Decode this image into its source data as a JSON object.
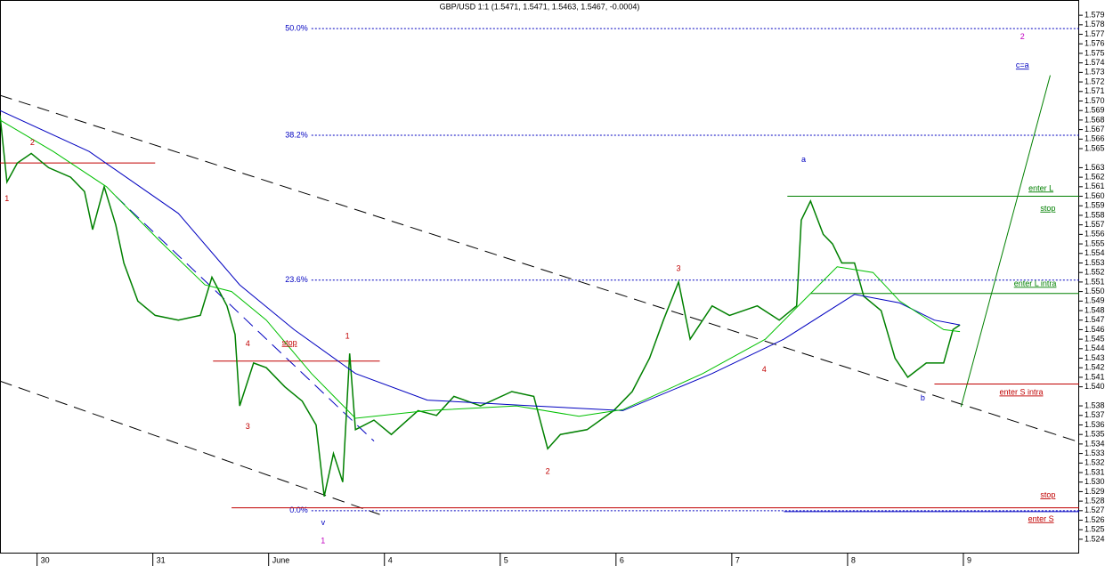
{
  "chart_data": {
    "type": "line",
    "title": "GBP/USD 1:1 (1.5471, 1.5471, 1.5463, 1.5467, -0.0004)",
    "xlim": [
      -0.32,
      9.0
    ],
    "ylim": [
      1.5225,
      1.5806
    ],
    "xticks": [
      {
        "value": 0,
        "label": "30"
      },
      {
        "value": 1,
        "label": "31"
      },
      {
        "value": 2,
        "label": "June"
      },
      {
        "value": 3,
        "label": "4"
      },
      {
        "value": 4,
        "label": "5"
      },
      {
        "value": 5,
        "label": "6"
      },
      {
        "value": 6,
        "label": "7"
      },
      {
        "value": 7,
        "label": "8"
      },
      {
        "value": 8,
        "label": "9"
      }
    ],
    "yticks": [
      1.579,
      1.578,
      1.577,
      1.576,
      1.575,
      1.574,
      1.573,
      1.572,
      1.571,
      {
        "value": 1.57,
        "label": "1.570"
      },
      1.569,
      1.568,
      1.567,
      1.566,
      1.565,
      1.563,
      1.562,
      1.561,
      {
        "value": 1.56,
        "label": "1.560"
      },
      1.559,
      1.558,
      1.557,
      1.556,
      1.555,
      1.554,
      1.553,
      1.552,
      1.551,
      {
        "value": 1.55,
        "label": "1.550"
      },
      1.549,
      1.548,
      1.547,
      1.546,
      1.545,
      1.544,
      1.543,
      1.542,
      1.541,
      {
        "value": 1.54,
        "label": "1.540"
      },
      1.538,
      1.537,
      1.536,
      1.535,
      1.534,
      1.533,
      1.532,
      1.531,
      {
        "value": 1.53,
        "label": "1.530"
      },
      1.529,
      1.528,
      1.527,
      1.526,
      1.525,
      1.524
    ],
    "series": [
      {
        "color": "#008000",
        "width": 1.5,
        "x": [
          -0.32,
          -0.26,
          -0.17,
          -0.05,
          0.1,
          0.29,
          0.41,
          0.48,
          0.58,
          0.68,
          0.75,
          0.87,
          1.02,
          1.22,
          1.41,
          1.51,
          1.64,
          1.71,
          1.75,
          1.87,
          1.98,
          2.14,
          2.29,
          2.41,
          2.48,
          2.56,
          2.64,
          2.7,
          2.75,
          2.91,
          3.06,
          3.29,
          3.45,
          3.6,
          3.83,
          4.1,
          4.29,
          4.41,
          4.52,
          4.75,
          4.98,
          5.14,
          5.29,
          5.41,
          5.54,
          5.64,
          5.83,
          5.98,
          6.22,
          6.41,
          6.56,
          6.6,
          6.68,
          6.79,
          6.87,
          6.95,
          7.06,
          7.14,
          7.29,
          7.41,
          7.52,
          7.68,
          7.83,
          7.91,
          7.97
        ],
        "values": [
          1.5685,
          1.5615,
          1.5635,
          1.5645,
          1.563,
          1.562,
          1.5605,
          1.5565,
          1.561,
          1.557,
          1.553,
          1.549,
          1.5475,
          1.547,
          1.5475,
          1.5515,
          1.5485,
          1.5455,
          1.538,
          1.5425,
          1.542,
          1.54,
          1.5385,
          1.536,
          1.5285,
          1.533,
          1.53,
          1.5435,
          1.5355,
          1.5365,
          1.535,
          1.5375,
          1.537,
          1.539,
          1.538,
          1.5395,
          1.539,
          1.5335,
          1.535,
          1.5355,
          1.5375,
          1.5395,
          1.543,
          1.547,
          1.551,
          1.545,
          1.5485,
          1.5475,
          1.5485,
          1.547,
          1.5485,
          1.5575,
          1.5595,
          1.556,
          1.555,
          1.553,
          1.553,
          1.5495,
          1.548,
          1.543,
          1.541,
          1.5425,
          1.5425,
          1.546,
          1.5465
        ]
      },
      {
        "color": "#0000c0",
        "width": 1,
        "x": [
          -0.32,
          0.45,
          1.22,
          1.75,
          2.22,
          2.75,
          3.37,
          4.29,
          5.06,
          5.83,
          6.45,
          7.06,
          7.45,
          7.75,
          7.97
        ],
        "values": [
          1.569,
          1.5647,
          1.5582,
          1.5507,
          1.546,
          1.5414,
          1.5386,
          1.538,
          1.5375,
          1.5414,
          1.545,
          1.5497,
          1.5488,
          1.547,
          1.5465
        ]
      },
      {
        "color": "#00c000",
        "width": 1,
        "x": [
          -0.32,
          0.14,
          0.6,
          1.06,
          1.45,
          1.68,
          1.98,
          2.37,
          2.75,
          3.37,
          4.14,
          4.68,
          5.06,
          5.75,
          6.29,
          6.6,
          6.91,
          7.22,
          7.45,
          7.83,
          7.97
        ],
        "values": [
          1.568,
          1.5647,
          1.561,
          1.5553,
          1.5507,
          1.55,
          1.547,
          1.5414,
          1.5367,
          1.5375,
          1.538,
          1.5369,
          1.5376,
          1.5414,
          1.545,
          1.5488,
          1.5526,
          1.552,
          1.549,
          1.546,
          1.5458
        ]
      }
    ],
    "trend_lines": [
      {
        "x": [
          -0.32,
          9.0
        ],
        "y": [
          1.5706,
          1.5342
        ],
        "color": "#000000",
        "dash": "14 8"
      },
      {
        "x": [
          -0.32,
          2.96
        ],
        "y": [
          1.5406,
          1.5266
        ],
        "color": "#000000",
        "dash": "14 8"
      },
      {
        "x": [
          0.68,
          2.91
        ],
        "y": [
          1.56,
          1.5343
        ],
        "color": "#0000c0",
        "dash": "14 8"
      },
      {
        "x": [
          7.98,
          8.75
        ],
        "y": [
          1.5379,
          1.5727
        ],
        "color": "#008000",
        "dash": "none"
      }
    ],
    "fib_levels": [
      {
        "label": "50.0%",
        "value": 1.5776,
        "x": [
          2.37,
          9.0
        ]
      },
      {
        "label": "38.2%",
        "value": 1.5664,
        "x": [
          2.37,
          9.0
        ]
      },
      {
        "label": "23.6%",
        "value": 1.5512,
        "x": [
          2.37,
          9.0
        ]
      },
      {
        "label": "0.0%",
        "value": 1.527,
        "x": [
          2.37,
          9.0
        ]
      }
    ],
    "levels": [
      {
        "value": 1.5635,
        "x": [
          -0.32,
          1.02
        ],
        "color": "#c00000"
      },
      {
        "value": 1.5427,
        "x": [
          1.52,
          2.96
        ],
        "color": "#c00000"
      },
      {
        "value": 1.5273,
        "x": [
          1.68,
          9.0
        ],
        "color": "#c00000"
      },
      {
        "value": 1.5269,
        "x": [
          6.45,
          9.0
        ],
        "color": "#0000c0"
      },
      {
        "value": 1.56,
        "x": [
          6.48,
          9.0
        ],
        "color": "#008000"
      },
      {
        "value": 1.5498,
        "x": [
          6.68,
          9.0
        ],
        "color": "#008000"
      },
      {
        "value": 1.5403,
        "x": [
          7.75,
          9.0
        ],
        "color": "#c00000"
      }
    ],
    "annotations": [
      {
        "text": "1",
        "x": -0.26,
        "y": 1.5597,
        "color": "#c00000"
      },
      {
        "text": "2",
        "x": -0.04,
        "y": 1.5656,
        "color": "#c00000"
      },
      {
        "text": "4",
        "x": 1.82,
        "y": 1.5445,
        "color": "#c00000"
      },
      {
        "text": "3",
        "x": 1.82,
        "y": 1.5358,
        "color": "#c00000"
      },
      {
        "text": "stop",
        "x": 2.18,
        "y": 1.5446,
        "color": "#c00000"
      },
      {
        "text": "1",
        "x": 2.68,
        "y": 1.5453,
        "color": "#c00000"
      },
      {
        "text": "v",
        "x": 2.47,
        "y": 1.5257,
        "color": "#0000c0"
      },
      {
        "text": "1",
        "x": 2.47,
        "y": 1.5238,
        "color": "#c000c0"
      },
      {
        "text": "2",
        "x": 4.41,
        "y": 1.5311,
        "color": "#c00000"
      },
      {
        "text": "3",
        "x": 5.54,
        "y": 1.5524,
        "color": "#c00000"
      },
      {
        "text": "4",
        "x": 6.28,
        "y": 1.5418,
        "color": "#c00000"
      },
      {
        "text": "a",
        "x": 6.62,
        "y": 1.5638,
        "color": "#0000c0"
      },
      {
        "text": "b",
        "x": 7.65,
        "y": 1.5388,
        "color": "#0000c0"
      },
      {
        "text": "c=a",
        "x": 8.51,
        "y": 1.5737,
        "color": "#0000c0"
      },
      {
        "text": "2",
        "x": 8.51,
        "y": 1.5767,
        "color": "#c000c0"
      },
      {
        "text": "enter L",
        "x": 8.67,
        "y": 1.5608,
        "color": "#008000"
      },
      {
        "text": "stop",
        "x": 8.73,
        "y": 1.5587,
        "color": "#008000"
      },
      {
        "text": "enter L intra",
        "x": 8.62,
        "y": 1.5508,
        "color": "#008000"
      },
      {
        "text": "enter S intra",
        "x": 8.5,
        "y": 1.5394,
        "color": "#c00000"
      },
      {
        "text": "stop",
        "x": 8.73,
        "y": 1.5286,
        "color": "#c00000"
      },
      {
        "text": "enter S",
        "x": 8.67,
        "y": 1.5261,
        "color": "#c00000"
      }
    ]
  }
}
